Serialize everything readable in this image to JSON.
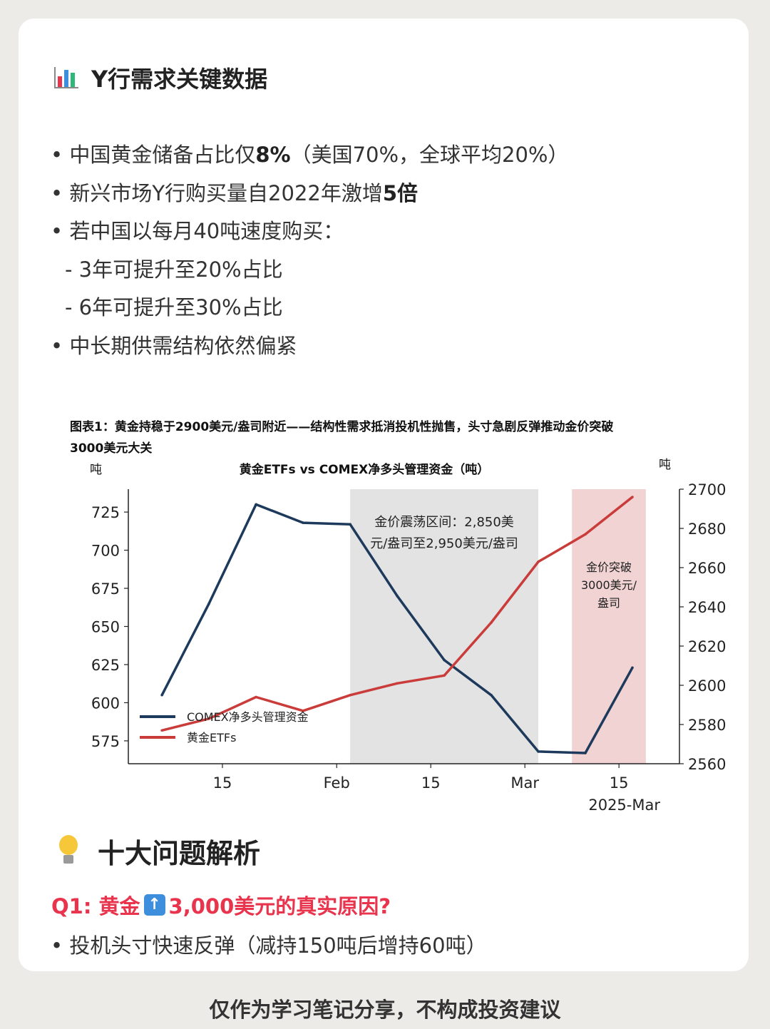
{
  "section1": {
    "title": "Y行需求关键数据",
    "bullets": [
      {
        "prefix": "• 中国黄金储备占比仅",
        "bold": "8%",
        "suffix": "（美国70%，全球平均20%）"
      },
      {
        "prefix": "• 新兴市场Y行购买量自2022年激增",
        "bold": "5倍",
        "suffix": ""
      },
      {
        "prefix": "• 若中国以每月40吨速度购买：",
        "bold": "",
        "suffix": ""
      }
    ],
    "sub_bullets": [
      "- 3年可提升至20%占比",
      "- 6年可提升至30%占比"
    ],
    "last_bullet": "• 中长期供需结构依然偏紧"
  },
  "chart_data": {
    "type": "line",
    "caption_line1": "图表1：黄金持稳于2900美元/盎司附近——结构性需求抵消投机性抛售，头寸急剧反弹推动金价突破",
    "caption_line2": "3000美元大关",
    "title": "黄金ETFs vs COMEX净多头管理资金（吨）",
    "left_unit": "吨",
    "right_unit": "吨",
    "x_ticks": [
      "15",
      "Feb",
      "15",
      "Mar",
      "15"
    ],
    "x_sublabel": "2025-Mar",
    "left_axis": {
      "min": 560,
      "max": 740,
      "ticks": [
        575,
        600,
        625,
        650,
        675,
        700,
        725
      ]
    },
    "right_axis": {
      "min": 2560,
      "max": 2700,
      "ticks": [
        2560,
        2580,
        2600,
        2620,
        2640,
        2660,
        2680,
        2700
      ]
    },
    "series": [
      {
        "name": "COMEX净多头管理资金",
        "color": "#1d3a5c",
        "axis": "left",
        "x": [
          "2025-01-06",
          "2025-01-13",
          "2025-01-20",
          "2025-01-27",
          "2025-02-03",
          "2025-02-10",
          "2025-02-17",
          "2025-02-24",
          "2025-03-03",
          "2025-03-10",
          "2025-03-17"
        ],
        "values": [
          605,
          665,
          730,
          718,
          717,
          670,
          628,
          605,
          568,
          567,
          623
        ]
      },
      {
        "name": "黄金ETFs",
        "color": "#c93c3a",
        "axis": "right",
        "x": [
          "2025-01-06",
          "2025-01-13",
          "2025-01-20",
          "2025-01-27",
          "2025-02-03",
          "2025-02-10",
          "2025-02-17",
          "2025-02-24",
          "2025-03-03",
          "2025-03-10",
          "2025-03-17"
        ],
        "values": [
          2577,
          2583,
          2594,
          2587,
          2595,
          2601,
          2605,
          2632,
          2663,
          2677,
          2696
        ]
      }
    ],
    "bands": [
      {
        "from": "2025-02-03",
        "to": "2025-03-03",
        "color": "#e3e3e3",
        "label_lines": [
          "金价震荡区间：2,850美",
          "元/盎司至2,950美元/盎司"
        ]
      },
      {
        "from": "2025-03-08",
        "to": "2025-03-19",
        "color": "#f1d3d3",
        "label_lines": [
          "金价突破",
          "3000美元/",
          "盎司"
        ]
      }
    ],
    "legend_position": "lower-left"
  },
  "section2": {
    "title": "十大问题解析",
    "q1": {
      "part1": "Q1: 黄金",
      "part2": "3,000美元的真实原因?"
    },
    "q1_bullet": "• 投机头寸快速反弹（减持150吨后增持60吨）"
  },
  "footer": "仅作为学习笔记分享，不构成投资建议",
  "colors": {
    "accent_red": "#e8344d",
    "up_icon": "#3e8ede"
  }
}
